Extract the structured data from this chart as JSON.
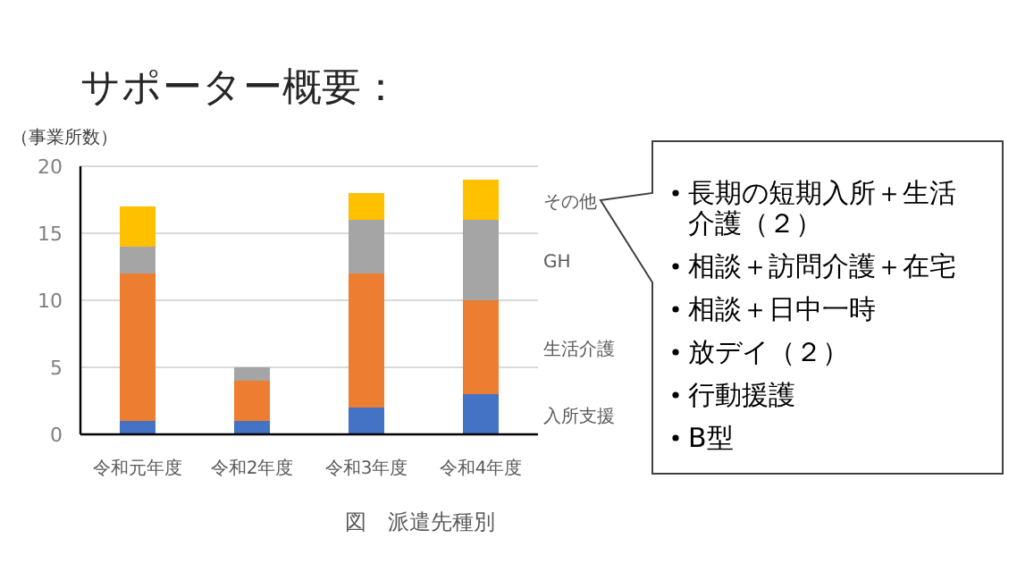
{
  "chart_data": {
    "type": "bar",
    "stacked": true,
    "title": "サポーター概要：",
    "ylabel": "（事業所数）",
    "categories": [
      "令和元年度",
      "令和2年度",
      "令和3年度",
      "令和4年度"
    ],
    "series": [
      {
        "name": "入所支援",
        "color": "#4472c4",
        "values": [
          1,
          1,
          2,
          3
        ]
      },
      {
        "name": "生活介護",
        "color": "#ed7d31",
        "values": [
          11,
          3,
          10,
          7
        ]
      },
      {
        "name": "GH",
        "color": "#a5a5a5",
        "values": [
          2,
          1,
          4,
          6
        ]
      },
      {
        "name": "その他",
        "color": "#ffc000",
        "values": [
          3,
          0,
          2,
          3
        ]
      }
    ],
    "ylim": [
      0,
      20
    ],
    "yticks": [
      0,
      5,
      10,
      15,
      20
    ],
    "grid": "y",
    "annotations": [
      "図　派遣先種別",
      "長期の短期入所＋生活介護（２）",
      "相談＋訪問介護＋在宅",
      "相談＋日中一時",
      "放デイ（２）",
      "行動援護",
      "B型"
    ]
  }
}
